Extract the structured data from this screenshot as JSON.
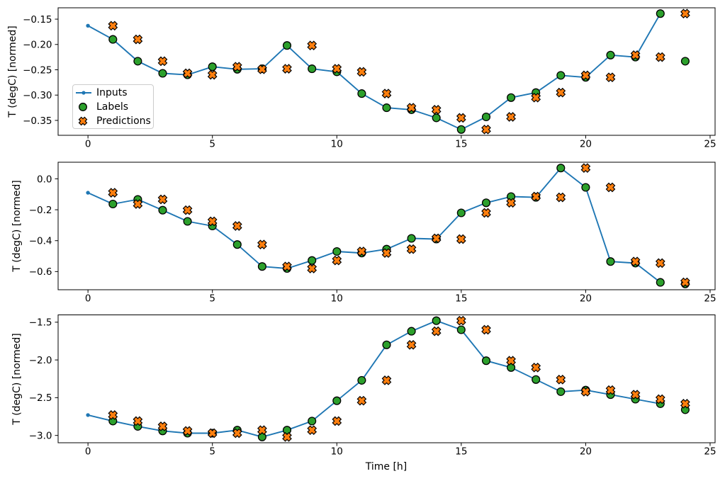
{
  "figure": {
    "ylabel": "T (degC) [normed]",
    "xlabel": "Time [h]",
    "background_color": "#ffffff",
    "legend": {
      "items": [
        {
          "label": "Inputs",
          "marker": "line-dot",
          "color": "#1f77b4"
        },
        {
          "label": "Labels",
          "marker": "circle",
          "color": "#2ca02c"
        },
        {
          "label": "Predictions",
          "marker": "x-filled",
          "color": "#ff7f0e"
        }
      ]
    }
  },
  "chart_data": [
    {
      "type": "line",
      "subplot": 1,
      "ylabel": "T (degC) [normed]",
      "xlabel": "",
      "legend_position": "center left",
      "grid": false,
      "xticks": {
        "values": [
          0,
          5,
          10,
          15,
          20,
          25
        ],
        "labels": [
          "0",
          "5",
          "10",
          "15",
          "20",
          "25"
        ]
      },
      "yticks": {
        "values": [
          -0.15,
          -0.2,
          -0.25,
          -0.3,
          -0.35
        ],
        "labels": [
          "−0.15",
          "−0.20",
          "−0.25",
          "−0.30",
          "−0.35"
        ]
      },
      "series": [
        {
          "name": "Inputs",
          "type": "line",
          "marker": "dot",
          "color": "#1f77b4",
          "x": [
            0,
            1,
            2,
            3,
            4,
            5,
            6,
            7,
            8,
            9,
            10,
            11,
            12,
            13,
            14,
            15,
            16,
            17,
            18,
            19,
            20,
            21,
            22,
            23
          ],
          "y": [
            -0.163,
            -0.19,
            -0.233,
            -0.257,
            -0.26,
            -0.244,
            -0.249,
            -0.248,
            -0.202,
            -0.248,
            -0.254,
            -0.297,
            -0.325,
            -0.329,
            -0.345,
            -0.368,
            -0.343,
            -0.305,
            -0.295,
            -0.261,
            -0.265,
            -0.221,
            -0.225,
            -0.139
          ]
        },
        {
          "name": "Labels",
          "type": "scatter",
          "marker": "circle",
          "color": "#2ca02c",
          "edgecolor": "#000000",
          "x": [
            1,
            2,
            3,
            4,
            5,
            6,
            7,
            8,
            9,
            10,
            11,
            12,
            13,
            14,
            15,
            16,
            17,
            18,
            19,
            20,
            21,
            22,
            23,
            24
          ],
          "y": [
            -0.19,
            -0.233,
            -0.257,
            -0.26,
            -0.244,
            -0.249,
            -0.248,
            -0.202,
            -0.248,
            -0.254,
            -0.297,
            -0.325,
            -0.329,
            -0.345,
            -0.368,
            -0.343,
            -0.305,
            -0.295,
            -0.261,
            -0.265,
            -0.221,
            -0.225,
            -0.139,
            -0.233
          ]
        },
        {
          "name": "Predictions",
          "type": "scatter",
          "marker": "X",
          "color": "#ff7f0e",
          "edgecolor": "#000000",
          "x": [
            1,
            2,
            3,
            4,
            5,
            6,
            7,
            8,
            9,
            10,
            11,
            12,
            13,
            14,
            15,
            16,
            17,
            18,
            19,
            20,
            21,
            22,
            23,
            24
          ],
          "y": [
            -0.163,
            -0.19,
            -0.233,
            -0.257,
            -0.26,
            -0.244,
            -0.249,
            -0.248,
            -0.202,
            -0.248,
            -0.254,
            -0.297,
            -0.325,
            -0.329,
            -0.345,
            -0.368,
            -0.343,
            -0.305,
            -0.295,
            -0.261,
            -0.265,
            -0.221,
            -0.225,
            -0.139
          ]
        }
      ]
    },
    {
      "type": "line",
      "subplot": 2,
      "ylabel": "T (degC) [normed]",
      "xlabel": "",
      "grid": false,
      "xticks": {
        "values": [
          0,
          5,
          10,
          15,
          20,
          25
        ],
        "labels": [
          "0",
          "5",
          "10",
          "15",
          "20",
          "25"
        ]
      },
      "yticks": {
        "values": [
          0.0,
          -0.2,
          -0.4,
          -0.6
        ],
        "labels": [
          "0.0",
          "−0.2",
          "−0.4",
          "−0.6"
        ]
      },
      "series": [
        {
          "name": "Inputs",
          "type": "line",
          "marker": "dot",
          "color": "#1f77b4",
          "x": [
            0,
            1,
            2,
            3,
            4,
            5,
            6,
            7,
            8,
            9,
            10,
            11,
            12,
            13,
            14,
            15,
            16,
            17,
            18,
            19,
            20,
            21,
            22,
            23
          ],
          "y": [
            -0.09,
            -0.163,
            -0.133,
            -0.203,
            -0.275,
            -0.305,
            -0.425,
            -0.567,
            -0.58,
            -0.528,
            -0.47,
            -0.48,
            -0.455,
            -0.385,
            -0.39,
            -0.22,
            -0.155,
            -0.115,
            -0.12,
            0.07,
            -0.055,
            -0.535,
            -0.545,
            -0.67
          ]
        },
        {
          "name": "Labels",
          "type": "scatter",
          "marker": "circle",
          "color": "#2ca02c",
          "edgecolor": "#000000",
          "x": [
            1,
            2,
            3,
            4,
            5,
            6,
            7,
            8,
            9,
            10,
            11,
            12,
            13,
            14,
            15,
            16,
            17,
            18,
            19,
            20,
            21,
            22,
            23,
            24
          ],
          "y": [
            -0.163,
            -0.133,
            -0.203,
            -0.275,
            -0.305,
            -0.425,
            -0.567,
            -0.58,
            -0.528,
            -0.47,
            -0.48,
            -0.455,
            -0.385,
            -0.39,
            -0.22,
            -0.155,
            -0.115,
            -0.12,
            0.07,
            -0.055,
            -0.535,
            -0.545,
            -0.67,
            -0.68
          ]
        },
        {
          "name": "Predictions",
          "type": "scatter",
          "marker": "X",
          "color": "#ff7f0e",
          "edgecolor": "#000000",
          "x": [
            1,
            2,
            3,
            4,
            5,
            6,
            7,
            8,
            9,
            10,
            11,
            12,
            13,
            14,
            15,
            16,
            17,
            18,
            19,
            20,
            21,
            22,
            23,
            24
          ],
          "y": [
            -0.09,
            -0.163,
            -0.133,
            -0.203,
            -0.275,
            -0.305,
            -0.425,
            -0.567,
            -0.58,
            -0.528,
            -0.47,
            -0.48,
            -0.455,
            -0.385,
            -0.39,
            -0.22,
            -0.155,
            -0.115,
            -0.12,
            0.07,
            -0.055,
            -0.535,
            -0.545,
            -0.67
          ]
        }
      ]
    },
    {
      "type": "line",
      "subplot": 3,
      "ylabel": "T (degC) [normed]",
      "xlabel": "Time [h]",
      "grid": false,
      "xticks": {
        "values": [
          0,
          5,
          10,
          15,
          20,
          25
        ],
        "labels": [
          "0",
          "5",
          "10",
          "15",
          "20",
          "25"
        ]
      },
      "yticks": {
        "values": [
          -1.5,
          -2.0,
          -2.5,
          -3.0
        ],
        "labels": [
          "−1.5",
          "−2.0",
          "−2.5",
          "−3.0"
        ]
      },
      "series": [
        {
          "name": "Inputs",
          "type": "line",
          "marker": "dot",
          "color": "#1f77b4",
          "x": [
            0,
            1,
            2,
            3,
            4,
            5,
            6,
            7,
            8,
            9,
            10,
            11,
            12,
            13,
            14,
            15,
            16,
            17,
            18,
            19,
            20,
            21,
            22,
            23
          ],
          "y": [
            -2.73,
            -2.81,
            -2.88,
            -2.94,
            -2.97,
            -2.97,
            -2.93,
            -3.02,
            -2.93,
            -2.81,
            -2.54,
            -2.27,
            -1.8,
            -1.62,
            -1.48,
            -1.6,
            -2.01,
            -2.1,
            -2.26,
            -2.42,
            -2.4,
            -2.46,
            -2.52,
            -2.58
          ]
        },
        {
          "name": "Labels",
          "type": "scatter",
          "marker": "circle",
          "color": "#2ca02c",
          "edgecolor": "#000000",
          "x": [
            1,
            2,
            3,
            4,
            5,
            6,
            7,
            8,
            9,
            10,
            11,
            12,
            13,
            14,
            15,
            16,
            17,
            18,
            19,
            20,
            21,
            22,
            23,
            24
          ],
          "y": [
            -2.81,
            -2.88,
            -2.94,
            -2.97,
            -2.97,
            -2.93,
            -3.02,
            -2.93,
            -2.81,
            -2.54,
            -2.27,
            -1.8,
            -1.62,
            -1.48,
            -1.6,
            -2.01,
            -2.1,
            -2.26,
            -2.42,
            -2.4,
            -2.46,
            -2.52,
            -2.58,
            -2.66
          ]
        },
        {
          "name": "Predictions",
          "type": "scatter",
          "marker": "X",
          "color": "#ff7f0e",
          "edgecolor": "#000000",
          "x": [
            1,
            2,
            3,
            4,
            5,
            6,
            7,
            8,
            9,
            10,
            11,
            12,
            13,
            14,
            15,
            16,
            17,
            18,
            19,
            20,
            21,
            22,
            23,
            24
          ],
          "y": [
            -2.73,
            -2.81,
            -2.88,
            -2.94,
            -2.97,
            -2.97,
            -2.93,
            -3.02,
            -2.93,
            -2.81,
            -2.54,
            -2.27,
            -1.8,
            -1.62,
            -1.48,
            -1.6,
            -2.01,
            -2.1,
            -2.26,
            -2.42,
            -2.4,
            -2.46,
            -2.52,
            -2.58
          ]
        }
      ]
    }
  ]
}
